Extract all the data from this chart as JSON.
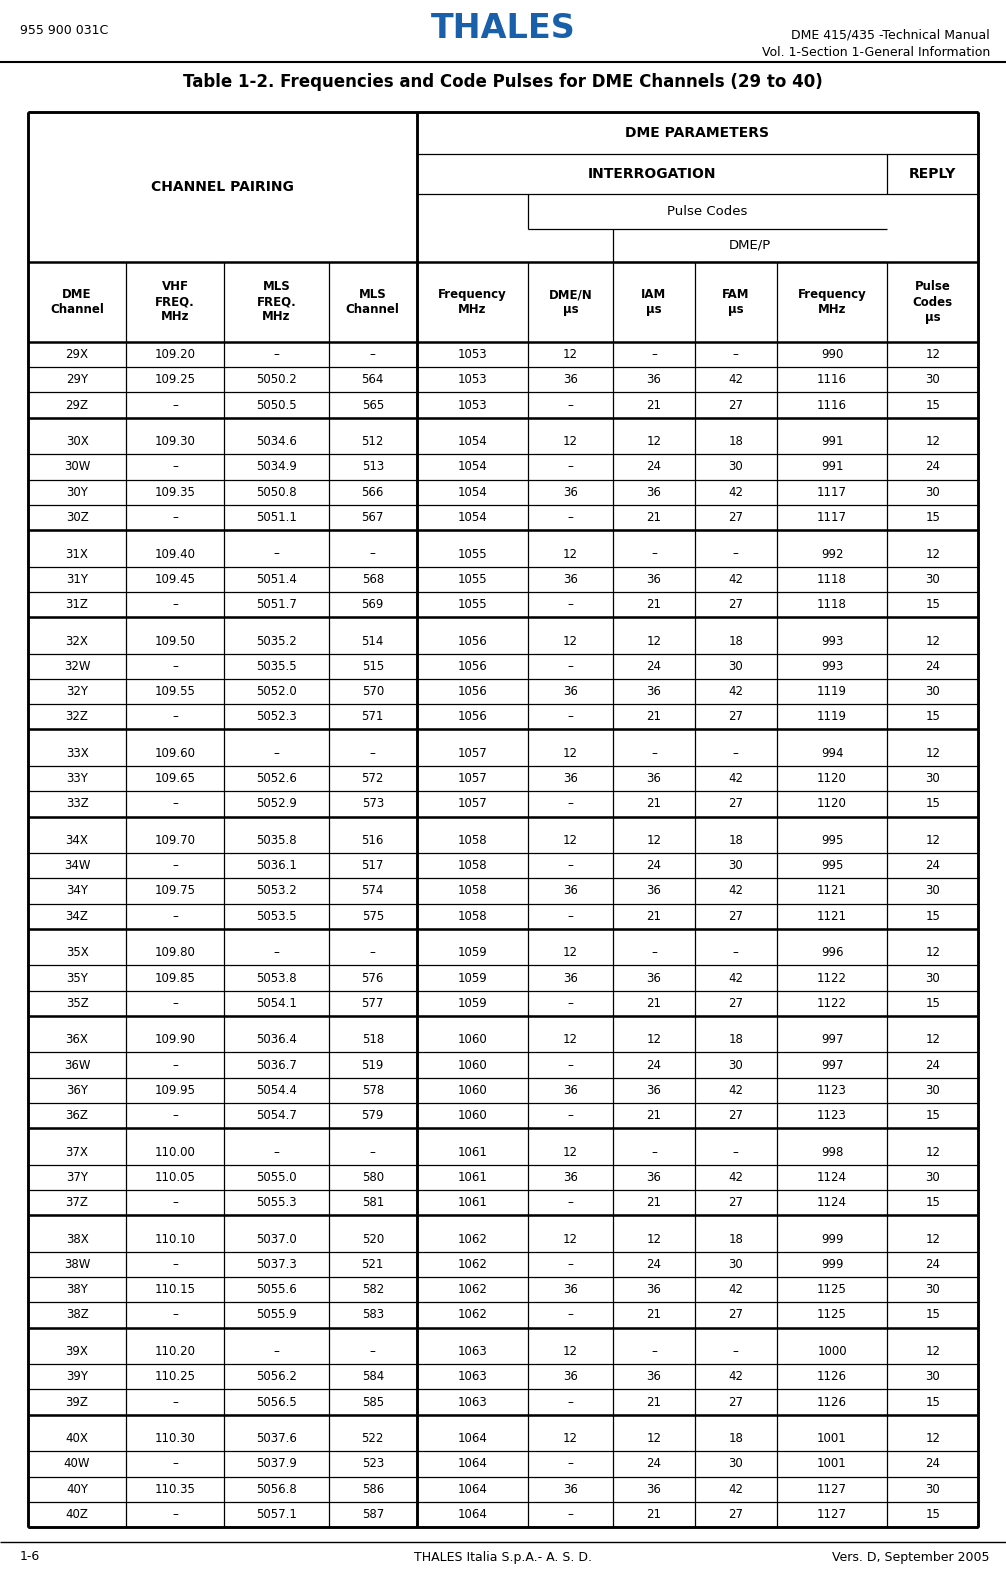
{
  "title": "Table 1-2. Frequencies and Code Pulses for DME Channels (29 to 40)",
  "header_left": "955 900 031C",
  "header_center": "THALES",
  "header_right1": "DME 415/435 -Technical Manual",
  "header_right2": "Vol. 1-Section 1-General Information",
  "footer_left": "1-6",
  "footer_center": "THALES Italia S.p.A.- A. S. D.",
  "footer_right": "Vers. D, September 2005",
  "col_headers": [
    "DME\nChannel",
    "VHF\nFREQ.\nMHz",
    "MLS\nFREQ.\nMHz",
    "MLS\nChannel",
    "Frequency\nMHz",
    "DME/N\nμs",
    "IAM\nμs",
    "FAM\nμs",
    "Frequency\nMHz",
    "Pulse\nCodes\nμs"
  ],
  "groups": [
    {
      "channels": [
        "29X",
        "29Y",
        "29Z"
      ],
      "vhf": [
        "109.20",
        "109.25",
        "–"
      ],
      "mls_freq": [
        "–",
        "5050.2",
        "5050.5"
      ],
      "mls_ch": [
        "–",
        "564",
        "565"
      ],
      "freq_int": [
        "1053",
        "1053",
        "1053"
      ],
      "dmen": [
        "12",
        "36",
        "–"
      ],
      "iam": [
        "–",
        "36",
        "21"
      ],
      "fam": [
        "–",
        "42",
        "27"
      ],
      "freq_rep": [
        "990",
        "1116",
        "1116"
      ],
      "pulse": [
        "12",
        "30",
        "15"
      ]
    },
    {
      "channels": [
        "30X",
        "30W",
        "30Y",
        "30Z"
      ],
      "vhf": [
        "109.30",
        "–",
        "109.35",
        "–"
      ],
      "mls_freq": [
        "5034.6",
        "5034.9",
        "5050.8",
        "5051.1"
      ],
      "mls_ch": [
        "512",
        "513",
        "566",
        "567"
      ],
      "freq_int": [
        "1054",
        "1054",
        "1054",
        "1054"
      ],
      "dmen": [
        "12",
        "–",
        "36",
        "–"
      ],
      "iam": [
        "12",
        "24",
        "36",
        "21"
      ],
      "fam": [
        "18",
        "30",
        "42",
        "27"
      ],
      "freq_rep": [
        "991",
        "991",
        "1117",
        "1117"
      ],
      "pulse": [
        "12",
        "24",
        "30",
        "15"
      ]
    },
    {
      "channels": [
        "31X",
        "31Y",
        "31Z"
      ],
      "vhf": [
        "109.40",
        "109.45",
        "–"
      ],
      "mls_freq": [
        "–",
        "5051.4",
        "5051.7"
      ],
      "mls_ch": [
        "–",
        "568",
        "569"
      ],
      "freq_int": [
        "1055",
        "1055",
        "1055"
      ],
      "dmen": [
        "12",
        "36",
        "–"
      ],
      "iam": [
        "–",
        "36",
        "21"
      ],
      "fam": [
        "–",
        "42",
        "27"
      ],
      "freq_rep": [
        "992",
        "1118",
        "1118"
      ],
      "pulse": [
        "12",
        "30",
        "15"
      ]
    },
    {
      "channels": [
        "32X",
        "32W",
        "32Y",
        "32Z"
      ],
      "vhf": [
        "109.50",
        "–",
        "109.55",
        "–"
      ],
      "mls_freq": [
        "5035.2",
        "5035.5",
        "5052.0",
        "5052.3"
      ],
      "mls_ch": [
        "514",
        "515",
        "570",
        "571"
      ],
      "freq_int": [
        "1056",
        "1056",
        "1056",
        "1056"
      ],
      "dmen": [
        "12",
        "–",
        "36",
        "–"
      ],
      "iam": [
        "12",
        "24",
        "36",
        "21"
      ],
      "fam": [
        "18",
        "30",
        "42",
        "27"
      ],
      "freq_rep": [
        "993",
        "993",
        "1119",
        "1119"
      ],
      "pulse": [
        "12",
        "24",
        "30",
        "15"
      ]
    },
    {
      "channels": [
        "33X",
        "33Y",
        "33Z"
      ],
      "vhf": [
        "109.60",
        "109.65",
        "–"
      ],
      "mls_freq": [
        "–",
        "5052.6",
        "5052.9"
      ],
      "mls_ch": [
        "–",
        "572",
        "573"
      ],
      "freq_int": [
        "1057",
        "1057",
        "1057"
      ],
      "dmen": [
        "12",
        "36",
        "–"
      ],
      "iam": [
        "–",
        "36",
        "21"
      ],
      "fam": [
        "–",
        "42",
        "27"
      ],
      "freq_rep": [
        "994",
        "1120",
        "1120"
      ],
      "pulse": [
        "12",
        "30",
        "15"
      ]
    },
    {
      "channels": [
        "34X",
        "34W",
        "34Y",
        "34Z"
      ],
      "vhf": [
        "109.70",
        "–",
        "109.75",
        "–"
      ],
      "mls_freq": [
        "5035.8",
        "5036.1",
        "5053.2",
        "5053.5"
      ],
      "mls_ch": [
        "516",
        "517",
        "574",
        "575"
      ],
      "freq_int": [
        "1058",
        "1058",
        "1058",
        "1058"
      ],
      "dmen": [
        "12",
        "–",
        "36",
        "–"
      ],
      "iam": [
        "12",
        "24",
        "36",
        "21"
      ],
      "fam": [
        "18",
        "30",
        "42",
        "27"
      ],
      "freq_rep": [
        "995",
        "995",
        "1121",
        "1121"
      ],
      "pulse": [
        "12",
        "24",
        "30",
        "15"
      ]
    },
    {
      "channels": [
        "35X",
        "35Y",
        "35Z"
      ],
      "vhf": [
        "109.80",
        "109.85",
        "–"
      ],
      "mls_freq": [
        "–",
        "5053.8",
        "5054.1"
      ],
      "mls_ch": [
        "–",
        "576",
        "577"
      ],
      "freq_int": [
        "1059",
        "1059",
        "1059"
      ],
      "dmen": [
        "12",
        "36",
        "–"
      ],
      "iam": [
        "–",
        "36",
        "21"
      ],
      "fam": [
        "–",
        "42",
        "27"
      ],
      "freq_rep": [
        "996",
        "1122",
        "1122"
      ],
      "pulse": [
        "12",
        "30",
        "15"
      ]
    },
    {
      "channels": [
        "36X",
        "36W",
        "36Y",
        "36Z"
      ],
      "vhf": [
        "109.90",
        "–",
        "109.95",
        "–"
      ],
      "mls_freq": [
        "5036.4",
        "5036.7",
        "5054.4",
        "5054.7"
      ],
      "mls_ch": [
        "518",
        "519",
        "578",
        "579"
      ],
      "freq_int": [
        "1060",
        "1060",
        "1060",
        "1060"
      ],
      "dmen": [
        "12",
        "–",
        "36",
        "–"
      ],
      "iam": [
        "12",
        "24",
        "36",
        "21"
      ],
      "fam": [
        "18",
        "30",
        "42",
        "27"
      ],
      "freq_rep": [
        "997",
        "997",
        "1123",
        "1123"
      ],
      "pulse": [
        "12",
        "24",
        "30",
        "15"
      ]
    },
    {
      "channels": [
        "37X",
        "37Y",
        "37Z"
      ],
      "vhf": [
        "110.00",
        "110.05",
        "–"
      ],
      "mls_freq": [
        "–",
        "5055.0",
        "5055.3"
      ],
      "mls_ch": [
        "–",
        "580",
        "581"
      ],
      "freq_int": [
        "1061",
        "1061",
        "1061"
      ],
      "dmen": [
        "12",
        "36",
        "–"
      ],
      "iam": [
        "–",
        "36",
        "21"
      ],
      "fam": [
        "–",
        "42",
        "27"
      ],
      "freq_rep": [
        "998",
        "1124",
        "1124"
      ],
      "pulse": [
        "12",
        "30",
        "15"
      ]
    },
    {
      "channels": [
        "38X",
        "38W",
        "38Y",
        "38Z"
      ],
      "vhf": [
        "110.10",
        "–",
        "110.15",
        "–"
      ],
      "mls_freq": [
        "5037.0",
        "5037.3",
        "5055.6",
        "5055.9"
      ],
      "mls_ch": [
        "520",
        "521",
        "582",
        "583"
      ],
      "freq_int": [
        "1062",
        "1062",
        "1062",
        "1062"
      ],
      "dmen": [
        "12",
        "–",
        "36",
        "–"
      ],
      "iam": [
        "12",
        "24",
        "36",
        "21"
      ],
      "fam": [
        "18",
        "30",
        "42",
        "27"
      ],
      "freq_rep": [
        "999",
        "999",
        "1125",
        "1125"
      ],
      "pulse": [
        "12",
        "24",
        "30",
        "15"
      ]
    },
    {
      "channels": [
        "39X",
        "39Y",
        "39Z"
      ],
      "vhf": [
        "110.20",
        "110.25",
        "–"
      ],
      "mls_freq": [
        "–",
        "5056.2",
        "5056.5"
      ],
      "mls_ch": [
        "–",
        "584",
        "585"
      ],
      "freq_int": [
        "1063",
        "1063",
        "1063"
      ],
      "dmen": [
        "12",
        "36",
        "–"
      ],
      "iam": [
        "–",
        "36",
        "21"
      ],
      "fam": [
        "–",
        "42",
        "27"
      ],
      "freq_rep": [
        "1000",
        "1126",
        "1126"
      ],
      "pulse": [
        "12",
        "30",
        "15"
      ]
    },
    {
      "channels": [
        "40X",
        "40W",
        "40Y",
        "40Z"
      ],
      "vhf": [
        "110.30",
        "–",
        "110.35",
        "–"
      ],
      "mls_freq": [
        "5037.6",
        "5037.9",
        "5056.8",
        "5057.1"
      ],
      "mls_ch": [
        "522",
        "523",
        "586",
        "587"
      ],
      "freq_int": [
        "1064",
        "1064",
        "1064",
        "1064"
      ],
      "dmen": [
        "12",
        "–",
        "36",
        "–"
      ],
      "iam": [
        "12",
        "24",
        "36",
        "21"
      ],
      "fam": [
        "18",
        "30",
        "42",
        "27"
      ],
      "freq_rep": [
        "1001",
        "1001",
        "1127",
        "1127"
      ],
      "pulse": [
        "12",
        "24",
        "30",
        "15"
      ]
    }
  ]
}
